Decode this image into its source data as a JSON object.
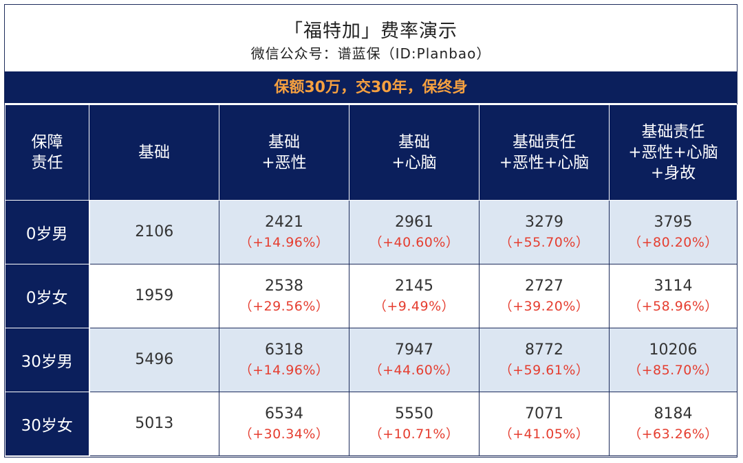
{
  "title": "「福特加」费率演示",
  "subtitle": "微信公众号：谱蓝保（ID:Planbao）",
  "banner": "保额30万，交30年，保终身",
  "colors": {
    "navy": "#0b1f5c",
    "banner_text": "#f5a040",
    "pct_text": "#e53d2f",
    "shade": "#dce6f2"
  },
  "header": {
    "c0": [
      "保障",
      "责任"
    ],
    "c1": [
      "基础"
    ],
    "c2": [
      "基础",
      "+恶性"
    ],
    "c3": [
      "基础",
      "+心脑"
    ],
    "c4": [
      "基础责任",
      "+恶性+心脑"
    ],
    "c5": [
      "基础责任",
      "+恶性+心脑",
      "+身故"
    ]
  },
  "rows": [
    {
      "label": "0岁男",
      "base": "2106",
      "c2": {
        "v": "2421",
        "p": "（+14.96%）"
      },
      "c3": {
        "v": "2961",
        "p": "（+40.60%）"
      },
      "c4": {
        "v": "3279",
        "p": "（+55.70%）"
      },
      "c5": {
        "v": "3795",
        "p": "（+80.20%）"
      }
    },
    {
      "label": "0岁女",
      "base": "1959",
      "c2": {
        "v": "2538",
        "p": "（+29.56%）"
      },
      "c3": {
        "v": "2145",
        "p": "（+9.49%）"
      },
      "c4": {
        "v": "2727",
        "p": "（+39.20%）"
      },
      "c5": {
        "v": "3114",
        "p": "（+58.96%）"
      }
    },
    {
      "label": "30岁男",
      "base": "5496",
      "c2": {
        "v": "6318",
        "p": "（+14.96%）"
      },
      "c3": {
        "v": "7947",
        "p": "（+44.60%）"
      },
      "c4": {
        "v": "8772",
        "p": "（+59.61%）"
      },
      "c5": {
        "v": "10206",
        "p": "（+85.70%）"
      }
    },
    {
      "label": "30岁女",
      "base": "5013",
      "c2": {
        "v": "6534",
        "p": "（+30.34%）"
      },
      "c3": {
        "v": "5550",
        "p": "（+10.71%）"
      },
      "c4": {
        "v": "7071",
        "p": "（+41.05%）"
      },
      "c5": {
        "v": "8184",
        "p": "（+63.26%）"
      }
    }
  ]
}
